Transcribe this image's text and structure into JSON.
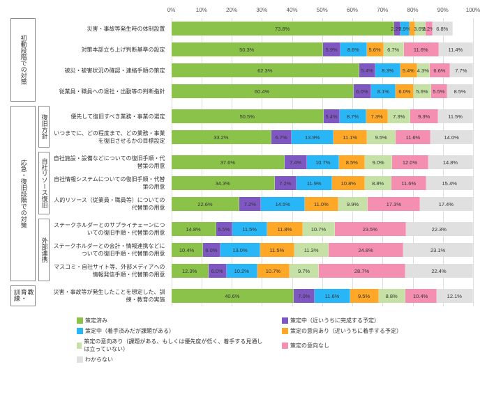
{
  "axis": {
    "min": 0,
    "max": 100,
    "step": 10,
    "suffix": "%"
  },
  "colors": {
    "c0": "#8bc34a",
    "c1": "#7e57c2",
    "c2": "#29b6f6",
    "c3": "#ffa726",
    "c4": "#c5e1a5",
    "c5": "#f48fb1",
    "c6": "#e0e0e0",
    "grid": "#dddddd",
    "border": "#888888",
    "bg": "#ffffff"
  },
  "legend": [
    {
      "k": "c0",
      "t": "策定済み"
    },
    {
      "k": "c1",
      "t": "策定中（近いうちに完成する予定）"
    },
    {
      "k": "c2",
      "t": "策定中（着手済みだが課題がある）"
    },
    {
      "k": "c3",
      "t": "策定の意向あり（近いうちに着手する予定）"
    },
    {
      "k": "c4",
      "t": "策定の意向あり（課題がある、もしくは優先度が低く、着手する見通しは立っていない）"
    },
    {
      "k": "c5",
      "t": "策定の意向なし"
    },
    {
      "k": "c6",
      "t": "わからない"
    }
  ],
  "groups": [
    {
      "cat": [
        "初動段階での対策"
      ],
      "rows": [
        {
          "label": "災害・事故等発生時の体制設置",
          "v": [
            73.8,
            2.2,
            2.9,
            1.8,
            3.6,
            2.2,
            6.8
          ]
        },
        {
          "label": "対策本部立ち上げ判断基準の設定",
          "v": [
            50.3,
            5.9,
            8.6,
            5.6,
            6.7,
            11.6,
            11.4
          ]
        },
        {
          "label": "被災・被害状況の確認・連絡手順の策定",
          "v": [
            62.3,
            5.4,
            8.3,
            5.4,
            4.3,
            6.6,
            7.7
          ]
        },
        {
          "label": "従業員・職員への退社・出勤等の判断指針",
          "v": [
            60.4,
            6.0,
            8.1,
            6.0,
            5.6,
            5.5,
            8.5
          ]
        }
      ]
    },
    {
      "cat": [
        "応急・復旧段階での対策",
        "復旧方針"
      ],
      "rows": [
        {
          "label": "優先して復旧すべき業務・事業の選定",
          "v": [
            50.5,
            5.4,
            8.7,
            7.3,
            7.3,
            9.3,
            11.5
          ]
        },
        {
          "label": "いつまでに、どの程度まで、どの業務・事業を復旧させるかの目標設定",
          "v": [
            33.2,
            6.7,
            13.9,
            11.1,
            9.5,
            11.6,
            14.0
          ]
        }
      ]
    },
    {
      "cat": [
        "",
        "自社リソース復旧"
      ],
      "rows": [
        {
          "label": "自社施設・設備などについての復旧手順・代替策の用意",
          "v": [
            37.6,
            7.4,
            10.7,
            8.5,
            9.0,
            12.0,
            14.8
          ]
        },
        {
          "label": "自社情報システムについての復旧手順・代替策の用意",
          "v": [
            34.3,
            7.2,
            11.9,
            10.8,
            8.8,
            11.6,
            15.4
          ]
        },
        {
          "label": "人的リソース（従業員・職員等）についての代替策の用意",
          "v": [
            22.6,
            7.2,
            14.5,
            11.0,
            9.9,
            17.3,
            17.4
          ]
        }
      ]
    },
    {
      "cat": [
        "",
        "外部連携"
      ],
      "rows": [
        {
          "label": "ステークホルダーとのサプライチェーンについての復旧手順・代替策の用意",
          "v": [
            14.8,
            5.5,
            11.5,
            11.8,
            10.7,
            23.5,
            22.3
          ]
        },
        {
          "label": "ステークホルダーとの会計・情報連携などについての復旧手順・代替策の用意",
          "v": [
            10.4,
            6.0,
            13.0,
            11.5,
            11.3,
            24.8,
            23.1
          ]
        },
        {
          "label": "マスコミ・自社サイト等、外部メディアへの情報発信手順・代替策の用意",
          "v": [
            12.3,
            6.0,
            10.2,
            10.7,
            9.7,
            28.7,
            22.4
          ]
        }
      ]
    },
    {
      "cat": [
        "教育・訓練"
      ],
      "rows": [
        {
          "label": "災害・事故等が発生したことを想定した、訓練・教育の実施",
          "v": [
            40.6,
            7.0,
            11.6,
            9.5,
            8.8,
            10.4,
            12.1
          ]
        }
      ]
    }
  ]
}
